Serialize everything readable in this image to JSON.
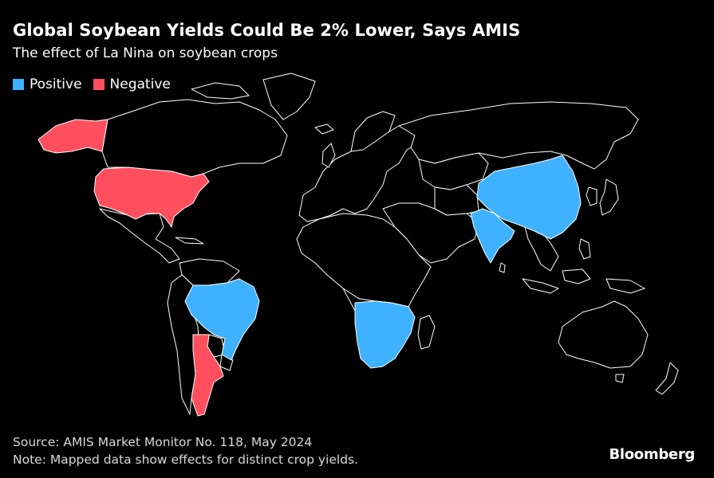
{
  "header": {
    "title": "Global Soybean Yields Could Be 2% Lower, Says AMIS",
    "subtitle": "The effect of La Nina on soybean crops"
  },
  "legend": {
    "items": [
      {
        "label": "Positive",
        "color": "#3EB2FF"
      },
      {
        "label": "Negative",
        "color": "#FF4F5E"
      }
    ]
  },
  "map": {
    "background": "#000000",
    "land_fill": "#000000",
    "border_color": "#ffffff",
    "positive_regions": [
      "Brazil",
      "China",
      "India",
      "Southern Africa"
    ],
    "negative_regions": [
      "United States",
      "Argentina"
    ]
  },
  "footer": {
    "source": "Source: AMIS Market Monitor No. 118, May 2024",
    "note": "Note: Mapped data show effects for distinct crop yields."
  },
  "brand": {
    "logo": "Bloomberg"
  }
}
